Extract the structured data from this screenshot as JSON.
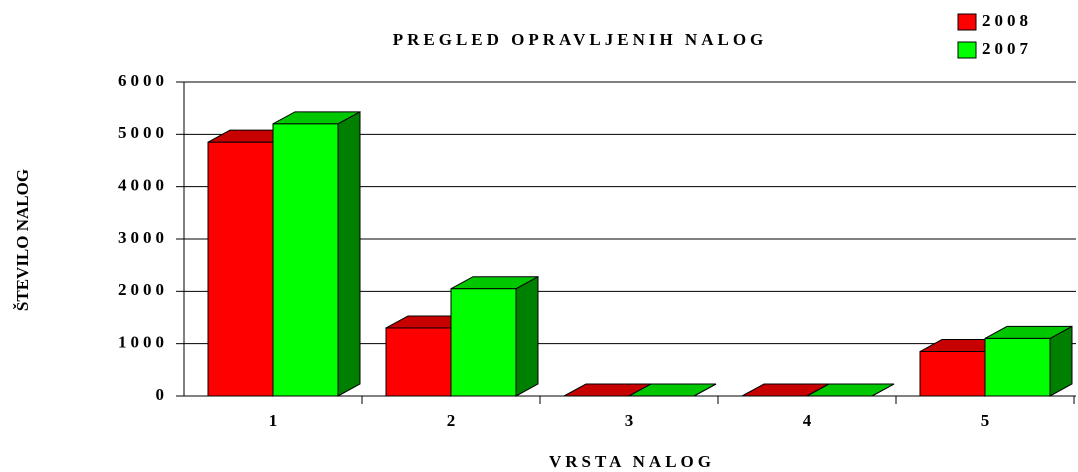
{
  "chart_data": {
    "type": "bar3d",
    "title": "PREGLED OPRAVLJENIH NALOG",
    "x_label": "VRSTA NALOG",
    "y_label": "ŠTEVILO NALOG",
    "categories": [
      "1",
      "2",
      "3",
      "4",
      "5"
    ],
    "series": [
      {
        "name": "2008",
        "color": "#ff0000",
        "values": [
          4850,
          1300,
          0,
          0,
          850
        ]
      },
      {
        "name": "2007",
        "color": "#00ff00",
        "values": [
          5200,
          2050,
          0,
          0,
          1100
        ]
      }
    ],
    "ylim": [
      0,
      6000
    ],
    "yticks": [
      0,
      1000,
      2000,
      3000,
      4000,
      5000,
      6000
    ],
    "grid": true,
    "legend": "top-right"
  }
}
